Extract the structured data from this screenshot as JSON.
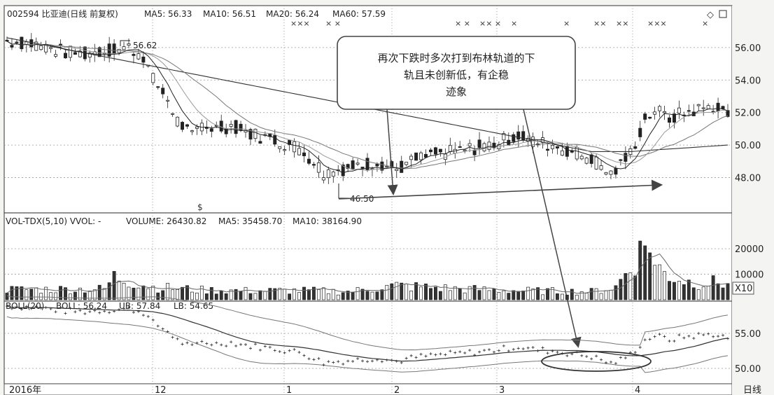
{
  "price_panel": {
    "header": {
      "code_name": "002594 比亚迪(日线 前复权)",
      "ma5": "MA5: 56.33",
      "ma10": "MA10: 56.51",
      "ma20": "MA20: 56.24",
      "ma60": "MA60: 57.59"
    },
    "high_label": "56.62",
    "low_label": "46.50",
    "annotation": [
      "再次下跌时多次打到布林轨道的下",
      "轨且未创新低，有企稳",
      "迹象"
    ],
    "x_marks": [
      "×××",
      "× ×",
      "× ×",
      "×× ×",
      "×",
      "×",
      "××",
      "××",
      "×××",
      "×"
    ]
  },
  "volume_panel": {
    "header": {
      "name": "VOL-TDX(5,10) VVOL: -",
      "volume": "VOLUME: 26430.82",
      "ma5": "MA5: 35458.70",
      "ma10": "MA10: 38164.90"
    },
    "multiplier": "X10"
  },
  "boll_panel": {
    "header": {
      "name": "BOLL(20)",
      "boll": "BOLL: 56.24",
      "ub": "UB: 57.84",
      "lb": "LB: 54.65"
    }
  },
  "x_axis": {
    "labels": [
      "2016年",
      "12",
      "1",
      "2",
      "3",
      "4"
    ],
    "period": "日线"
  },
  "chart_data": {
    "type": "candlestick",
    "price_axis": {
      "ticks": [
        48,
        50,
        52,
        54,
        56
      ],
      "tick_labels": [
        "48.00",
        "50.00",
        "52.00",
        "54.00",
        "56.00"
      ],
      "range": [
        46,
        57.2
      ]
    },
    "volume_axis": {
      "ticks": [
        10000,
        20000
      ],
      "tick_labels": [
        "10000",
        "20000"
      ],
      "range": [
        0,
        28000
      ]
    },
    "boll_axis": {
      "ticks": [
        50,
        55
      ],
      "tick_labels": [
        "50.00",
        "55.00"
      ],
      "range": [
        48,
        58
      ]
    },
    "price_trend": [
      [
        0,
        56.4
      ],
      [
        6,
        56.2
      ],
      [
        12,
        55.7
      ],
      [
        16,
        55.6
      ],
      [
        20,
        55.8
      ],
      [
        25,
        56.0
      ],
      [
        28,
        55.5
      ],
      [
        30,
        54.0
      ],
      [
        33,
        52.8
      ],
      [
        35,
        51.5
      ],
      [
        38,
        50.5
      ],
      [
        40,
        51.3
      ],
      [
        43,
        51.0
      ],
      [
        46,
        51.2
      ],
      [
        50,
        50.7
      ],
      [
        55,
        50.3
      ],
      [
        60,
        49.8
      ],
      [
        63,
        49.0
      ],
      [
        65,
        48.3
      ],
      [
        68,
        48.5
      ],
      [
        72,
        48.7
      ],
      [
        76,
        49.0
      ],
      [
        80,
        48.5
      ],
      [
        84,
        49.1
      ],
      [
        88,
        49.4
      ],
      [
        92,
        49.6
      ],
      [
        96,
        49.8
      ],
      [
        100,
        50.1
      ],
      [
        105,
        50.6
      ],
      [
        108,
        50.2
      ],
      [
        112,
        50.0
      ],
      [
        116,
        49.6
      ],
      [
        120,
        49.2
      ],
      [
        124,
        48.2
      ],
      [
        126,
        48.7
      ],
      [
        128,
        49.5
      ],
      [
        131,
        51.5
      ],
      [
        133,
        52.2
      ],
      [
        136,
        51.6
      ],
      [
        139,
        52.0
      ],
      [
        142,
        52.2
      ],
      [
        145,
        52.4
      ],
      [
        148,
        51.8
      ]
    ],
    "volume_profile": [
      [
        0,
        4000
      ],
      [
        20,
        4200
      ],
      [
        22,
        9000
      ],
      [
        30,
        5000
      ],
      [
        40,
        3800
      ],
      [
        50,
        3500
      ],
      [
        60,
        3600
      ],
      [
        70,
        3200
      ],
      [
        80,
        5500
      ],
      [
        90,
        4500
      ],
      [
        100,
        3800
      ],
      [
        110,
        3400
      ],
      [
        120,
        3200
      ],
      [
        125,
        5000
      ],
      [
        132,
        24000
      ],
      [
        133,
        13000
      ],
      [
        136,
        9500
      ],
      [
        140,
        7000
      ],
      [
        148,
        6500
      ]
    ],
    "annotation_points": {
      "high": 56.62,
      "low": 46.5
    }
  }
}
